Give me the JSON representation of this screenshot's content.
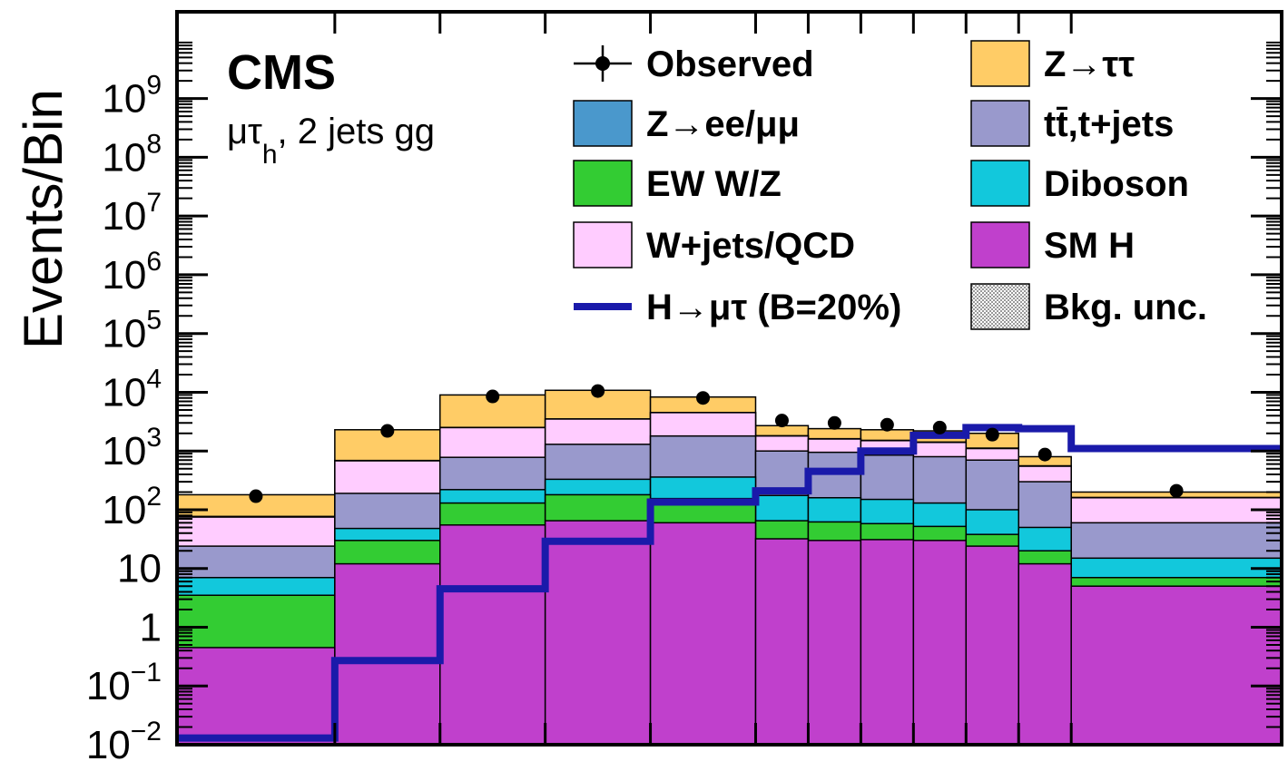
{
  "chart_data": {
    "type": "bar",
    "scale": "log",
    "stacked": true,
    "title": "CMS",
    "subtitle": "μτh, 2 jets gg",
    "xlabel": "",
    "ylabel": "Events/Bin",
    "ylim": [
      0.01,
      30000000000
    ],
    "y_ticks": [
      {
        "value": 0.01,
        "base": "10",
        "exp": "−2"
      },
      {
        "value": 0.1,
        "base": "10",
        "exp": "−1"
      },
      {
        "value": 1,
        "base": "1",
        "exp": ""
      },
      {
        "value": 10,
        "base": "10",
        "exp": ""
      },
      {
        "value": 100,
        "base": "10",
        "exp": "2"
      },
      {
        "value": 1000,
        "base": "10",
        "exp": "3"
      },
      {
        "value": 10000,
        "base": "10",
        "exp": "4"
      },
      {
        "value": 100000,
        "base": "10",
        "exp": "5"
      },
      {
        "value": 1000000,
        "base": "10",
        "exp": "6"
      },
      {
        "value": 10000000,
        "base": "10",
        "exp": "7"
      },
      {
        "value": 100000000,
        "base": "10",
        "exp": "8"
      },
      {
        "value": 1000000000,
        "base": "10",
        "exp": "9"
      }
    ],
    "bin_edges": [
      0,
      3,
      5,
      7,
      9,
      11,
      12,
      13,
      14,
      15,
      16,
      17,
      21
    ],
    "xlim": [
      0,
      21
    ],
    "stack_cumulative": [
      {
        "name": "SM H",
        "color": "#c040cc",
        "values": [
          0.45,
          12,
          55,
          65,
          60,
          32,
          30,
          31,
          30,
          24,
          12,
          5
        ]
      },
      {
        "name": "EW W/Z",
        "color": "#33cc33",
        "values": [
          3.5,
          30,
          130,
          180,
          155,
          65,
          62,
          58,
          52,
          38,
          20,
          7
        ]
      },
      {
        "name": "Diboson",
        "color": "#12c8dc",
        "values": [
          7,
          48,
          220,
          330,
          360,
          175,
          160,
          150,
          130,
          100,
          50,
          15
        ]
      },
      {
        "name": "tt̄,t+jets",
        "color": "#9999cc",
        "values": [
          24,
          190,
          780,
          1300,
          1800,
          1000,
          950,
          850,
          800,
          700,
          300,
          60
        ]
      },
      {
        "name": "W+jets/QCD",
        "color": "#ffccff",
        "values": [
          75,
          680,
          2500,
          3500,
          4500,
          1800,
          1600,
          1500,
          1400,
          1100,
          550,
          160
        ]
      },
      {
        "name": "Z→ee/μμ",
        "color": "#4a98cc",
        "values": [
          77,
          690,
          2520,
          3520,
          4520,
          1820,
          1620,
          1520,
          1420,
          1120,
          560,
          162
        ]
      },
      {
        "name": "Z→ττ",
        "color": "#ffcc66",
        "values": [
          180,
          2300,
          9000,
          10800,
          8300,
          2700,
          2400,
          2300,
          2200,
          2000,
          800,
          200
        ]
      }
    ],
    "signal": {
      "name": "H→μτ (B=20%)",
      "color": "#1a1aaa",
      "values": [
        0.013,
        0.27,
        4.5,
        29,
        135,
        210,
        450,
        1000,
        1850,
        2500,
        2400,
        1100
      ]
    },
    "observed": {
      "name": "Observed",
      "x": [
        1.5,
        4,
        6,
        8,
        10,
        11.5,
        12.5,
        13.5,
        14.5,
        15.5,
        16.5,
        19
      ],
      "y": [
        170,
        2200,
        8500,
        10500,
        8000,
        3300,
        3000,
        2800,
        2500,
        1900,
        870,
        210
      ]
    },
    "legend_placement": "top-right",
    "legend": [
      {
        "key": "observed",
        "label": "Observed",
        "kind": "point",
        "color": "#000000"
      },
      {
        "key": "ztt",
        "label": "Z→ττ",
        "kind": "box",
        "color": "#ffcc66"
      },
      {
        "key": "zll",
        "label": "Z→ee/μμ",
        "kind": "box",
        "color": "#4a98cc"
      },
      {
        "key": "top",
        "label": "tt̄,t+jets",
        "kind": "box",
        "color": "#9999cc"
      },
      {
        "key": "ew",
        "label": "EW W/Z",
        "kind": "box",
        "color": "#33cc33"
      },
      {
        "key": "diboson",
        "label": "Diboson",
        "kind": "box",
        "color": "#12c8dc"
      },
      {
        "key": "wjets",
        "label": "W+jets/QCD",
        "kind": "box",
        "color": "#ffccff"
      },
      {
        "key": "smh",
        "label": "SM H",
        "kind": "box",
        "color": "#c040cc"
      },
      {
        "key": "signal",
        "label": "H→μτ (B=20%)",
        "kind": "line",
        "color": "#1a1aaa"
      },
      {
        "key": "unc",
        "label": "Bkg. unc.",
        "kind": "hatch",
        "color": "#aaaaaa"
      }
    ],
    "grid": false
  }
}
